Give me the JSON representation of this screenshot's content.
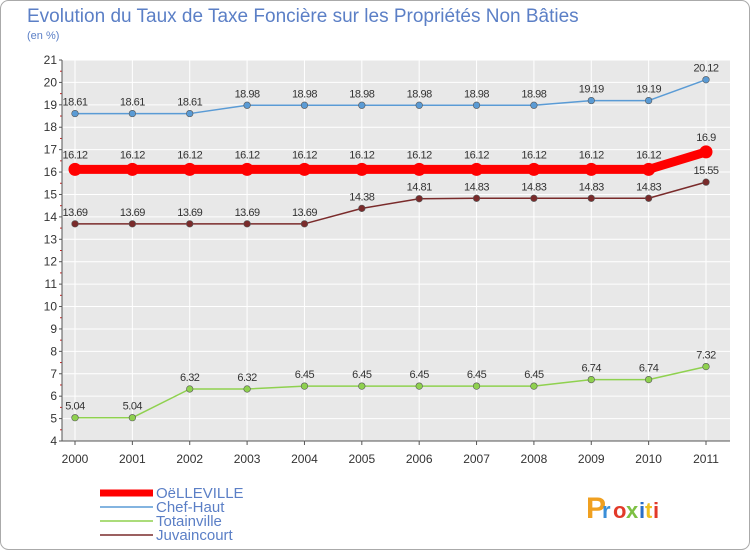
{
  "chart_data": {
    "type": "line",
    "title": "Evolution du Taux de Taxe Foncière sur les Propriétés Non Bâties",
    "subtitle": "(en %)",
    "x": [
      "2000",
      "2001",
      "2002",
      "2003",
      "2004",
      "2005",
      "2006",
      "2007",
      "2008",
      "2009",
      "2010",
      "2011"
    ],
    "ylim": [
      4,
      21
    ],
    "yticks": [
      "4",
      "5",
      "6",
      "7",
      "8",
      "9",
      "10",
      "11",
      "12",
      "13",
      "14",
      "15",
      "16",
      "17",
      "18",
      "19",
      "20",
      "21"
    ],
    "series": [
      {
        "name": "OëLLEVILLE",
        "color": "#ff0000",
        "values": [
          16.12,
          16.12,
          16.12,
          16.12,
          16.12,
          16.12,
          16.12,
          16.12,
          16.12,
          16.12,
          16.12,
          16.9
        ],
        "labels": [
          "16.12",
          "16.12",
          "16.12",
          "16.12",
          "16.12",
          "16.12",
          "16.12",
          "16.12",
          "16.12",
          "16.12",
          "16.12",
          "16.9"
        ]
      },
      {
        "name": "Chef-Haut",
        "color": "#5a9bd5",
        "values": [
          18.61,
          18.61,
          18.61,
          18.98,
          18.98,
          18.98,
          18.98,
          18.98,
          18.98,
          19.19,
          19.19,
          20.12
        ],
        "labels": [
          "18.61",
          "18.61",
          "18.61",
          "18.98",
          "18.98",
          "18.98",
          "18.98",
          "18.98",
          "18.98",
          "19.19",
          "19.19",
          "20.12"
        ]
      },
      {
        "name": "Totainville",
        "color": "#8fd14f",
        "values": [
          5.04,
          5.04,
          6.32,
          6.32,
          6.45,
          6.45,
          6.45,
          6.45,
          6.45,
          6.74,
          6.74,
          7.32
        ],
        "labels": [
          "5.04",
          "5.04",
          "6.32",
          "6.32",
          "6.45",
          "6.45",
          "6.45",
          "6.45",
          "6.45",
          "6.74",
          "6.74",
          "7.32"
        ]
      },
      {
        "name": "Juvaincourt",
        "color": "#7a2b2b",
        "values": [
          13.69,
          13.69,
          13.69,
          13.69,
          13.69,
          14.38,
          14.81,
          14.83,
          14.83,
          14.83,
          14.83,
          15.55
        ],
        "labels": [
          "13.69",
          "13.69",
          "13.69",
          "13.69",
          "13.69",
          "14.38",
          "14.81",
          "14.83",
          "14.83",
          "14.83",
          "14.83",
          "15.55"
        ]
      }
    ],
    "legend_position": "bottom-left"
  },
  "logo": {
    "text": "Proxiti",
    "letter_colors": [
      "#f0a020",
      "#3a8fd8",
      "#e23a2a",
      "#7dc043",
      "#2a6fc8",
      "#f0c020",
      "#e23a2a"
    ]
  }
}
